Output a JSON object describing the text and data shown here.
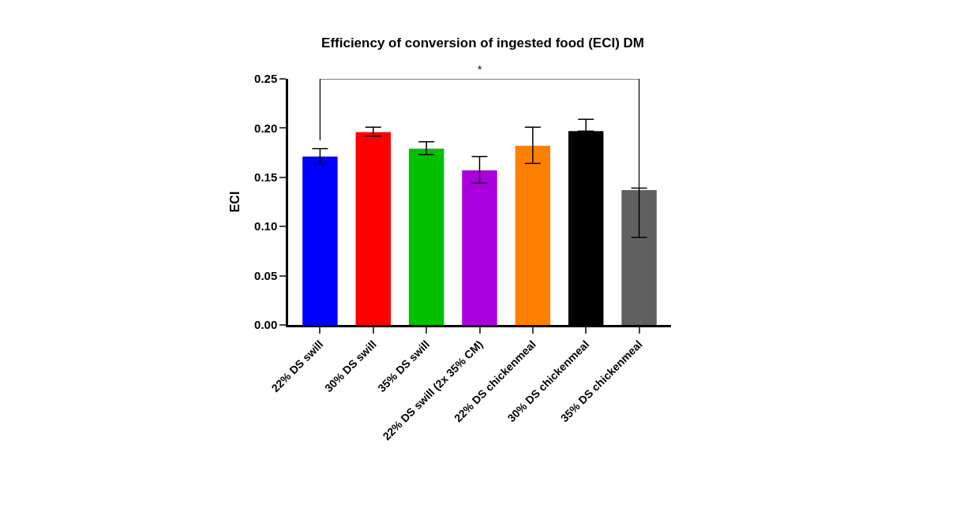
{
  "chart_data": {
    "type": "bar",
    "title": "Efficiency of conversion of ingested food (ECI) DM",
    "ylabel": "ECI",
    "categories": [
      "22% DS swill",
      "30% DS swill",
      "35% DS swill",
      "22% DS swill (2x 35% CM)",
      "22% DS chickenmeal",
      "30% DS chickenmeal",
      "35% DS chickenmeal"
    ],
    "values": [
      0.171,
      0.196,
      0.179,
      0.157,
      0.182,
      0.197,
      0.137
    ],
    "colors": [
      "#0000ff",
      "#ff0000",
      "#00c000",
      "#aa00dd",
      "#ff8000",
      "#000000",
      "#606060"
    ],
    "errors": [
      [
        0.164,
        0.179
      ],
      [
        0.192,
        0.201
      ],
      [
        0.173,
        0.186
      ],
      [
        0.144,
        0.171
      ],
      [
        0.164,
        0.201
      ],
      [
        0.197,
        0.209
      ],
      [
        0.089,
        0.139
      ]
    ],
    "ylim": [
      0,
      0.25
    ],
    "yticks": [
      {
        "value": 0,
        "label": "0.00"
      },
      {
        "value": 0.05,
        "label": "0.05"
      },
      {
        "value": 0.1,
        "label": "0.10"
      },
      {
        "value": 0.15,
        "label": "0.15"
      },
      {
        "value": 0.2,
        "label": "0.20"
      },
      {
        "value": 0.25,
        "label": "0.25"
      }
    ],
    "annotations": [
      "*"
    ],
    "legend": false
  }
}
